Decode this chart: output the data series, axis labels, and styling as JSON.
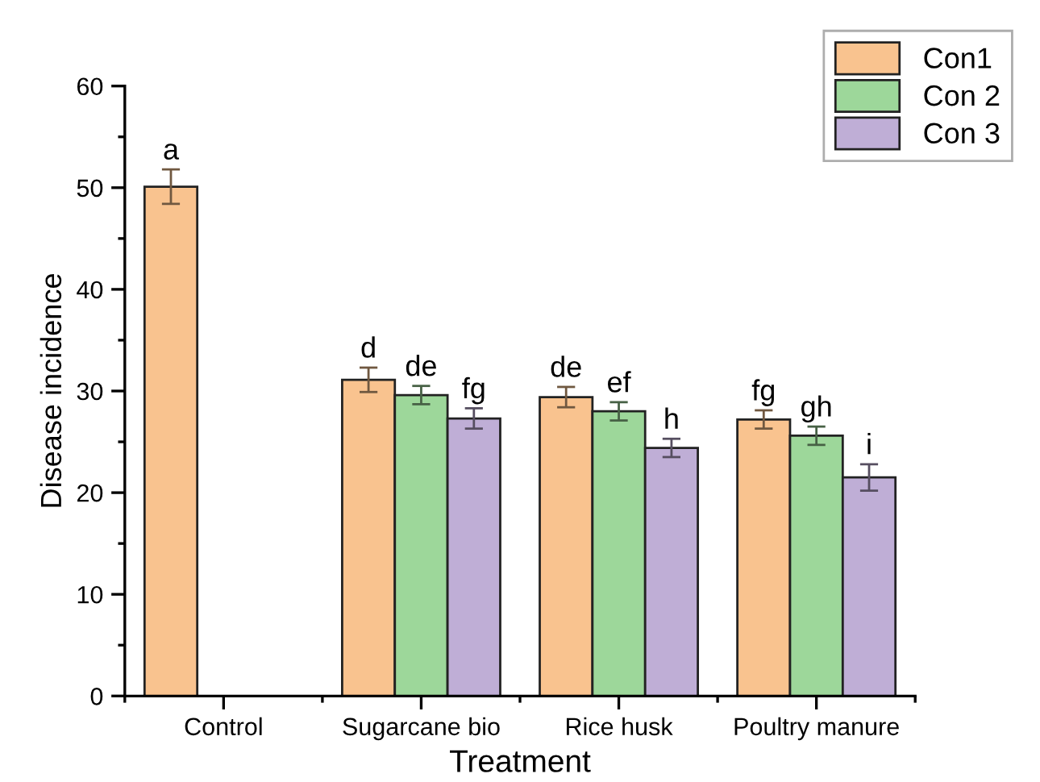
{
  "chart_data": {
    "type": "bar",
    "xlabel": "Treatment",
    "ylabel": "Disease incidence",
    "categories": [
      "Control",
      "Sugarcane bio",
      "Rice husk",
      "Poultry manure"
    ],
    "series": [
      {
        "name": "Con1",
        "color": "#f9c38f",
        "values": [
          50.1,
          31.1,
          29.4,
          27.2
        ],
        "errors": [
          1.7,
          1.2,
          1.0,
          0.9
        ],
        "value_labels": [
          "a",
          "d",
          "de",
          "fg"
        ]
      },
      {
        "name": "Con 2",
        "color": "#9dd79a",
        "values": [
          null,
          29.6,
          28.0,
          25.6
        ],
        "errors": [
          null,
          0.9,
          0.9,
          0.9
        ],
        "value_labels": [
          null,
          "de",
          "ef",
          "gh"
        ]
      },
      {
        "name": "Con 3",
        "color": "#bfaed6",
        "values": [
          null,
          27.3,
          24.4,
          21.5
        ],
        "errors": [
          null,
          1.0,
          0.9,
          1.3
        ],
        "value_labels": [
          null,
          "fg",
          "h",
          "i"
        ]
      }
    ],
    "ylim": [
      0,
      60
    ],
    "yticks": [
      0,
      {
        "value": 5,
        "label": null
      },
      10,
      {
        "value": 15,
        "label": null
      },
      20,
      {
        "value": 25,
        "label": null
      },
      30,
      {
        "value": 35,
        "label": null
      },
      40,
      {
        "value": 45,
        "label": null
      },
      50,
      {
        "value": 55,
        "label": null
      },
      60
    ],
    "grid": false,
    "legend": "top right"
  }
}
